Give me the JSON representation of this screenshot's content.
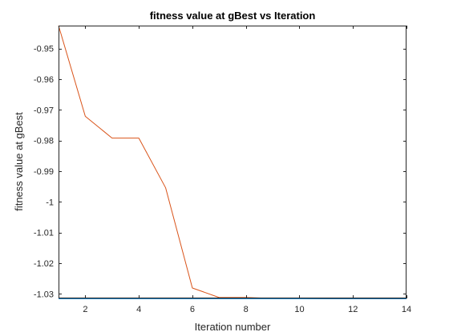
{
  "chart_data": {
    "type": "line",
    "title": "fitness value at gBest vs Iteration",
    "xlabel": "Iteration number",
    "ylabel": "fitness value at gBest",
    "xlim": [
      1,
      14
    ],
    "ylim": [
      -1.0315,
      -0.9425
    ],
    "xticks": [
      2,
      4,
      6,
      8,
      10,
      12,
      14
    ],
    "xtick_labels": [
      "2",
      "4",
      "6",
      "8",
      "10",
      "12",
      "14"
    ],
    "yticks": [
      -0.95,
      -0.96,
      -0.97,
      -0.98,
      -0.99,
      -1,
      -1.01,
      -1.02,
      -1.03
    ],
    "ytick_labels": [
      "-0.95",
      "-0.96",
      "-0.97",
      "-0.98",
      "-0.99",
      "-1",
      "-1.01",
      "-1.02",
      "-1.03"
    ],
    "grid": false,
    "legend": false,
    "series": [
      {
        "color": "#d95319",
        "x": [
          1,
          2,
          3,
          4,
          5,
          6,
          7,
          8,
          9,
          10,
          11,
          12,
          13,
          14
        ],
        "y": [
          -0.9425,
          -0.9721,
          -0.9792,
          -0.9792,
          -0.9954,
          -1.0281,
          -1.0312,
          -1.0312,
          -1.0315,
          -1.0315,
          -1.0316,
          -1.0316,
          -1.0316,
          -1.0316
        ]
      },
      {
        "color": "#0072bd",
        "x": [
          1,
          2,
          3,
          4,
          5,
          6,
          7,
          8,
          9,
          10,
          11,
          12,
          13,
          14
        ],
        "y": [
          -1.0316,
          -1.0316,
          -1.0316,
          -1.0316,
          -1.0316,
          -1.0316,
          -1.0316,
          -1.0316,
          -1.0316,
          -1.0316,
          -1.0316,
          -1.0316,
          -1.0316,
          -1.0316
        ]
      }
    ]
  }
}
